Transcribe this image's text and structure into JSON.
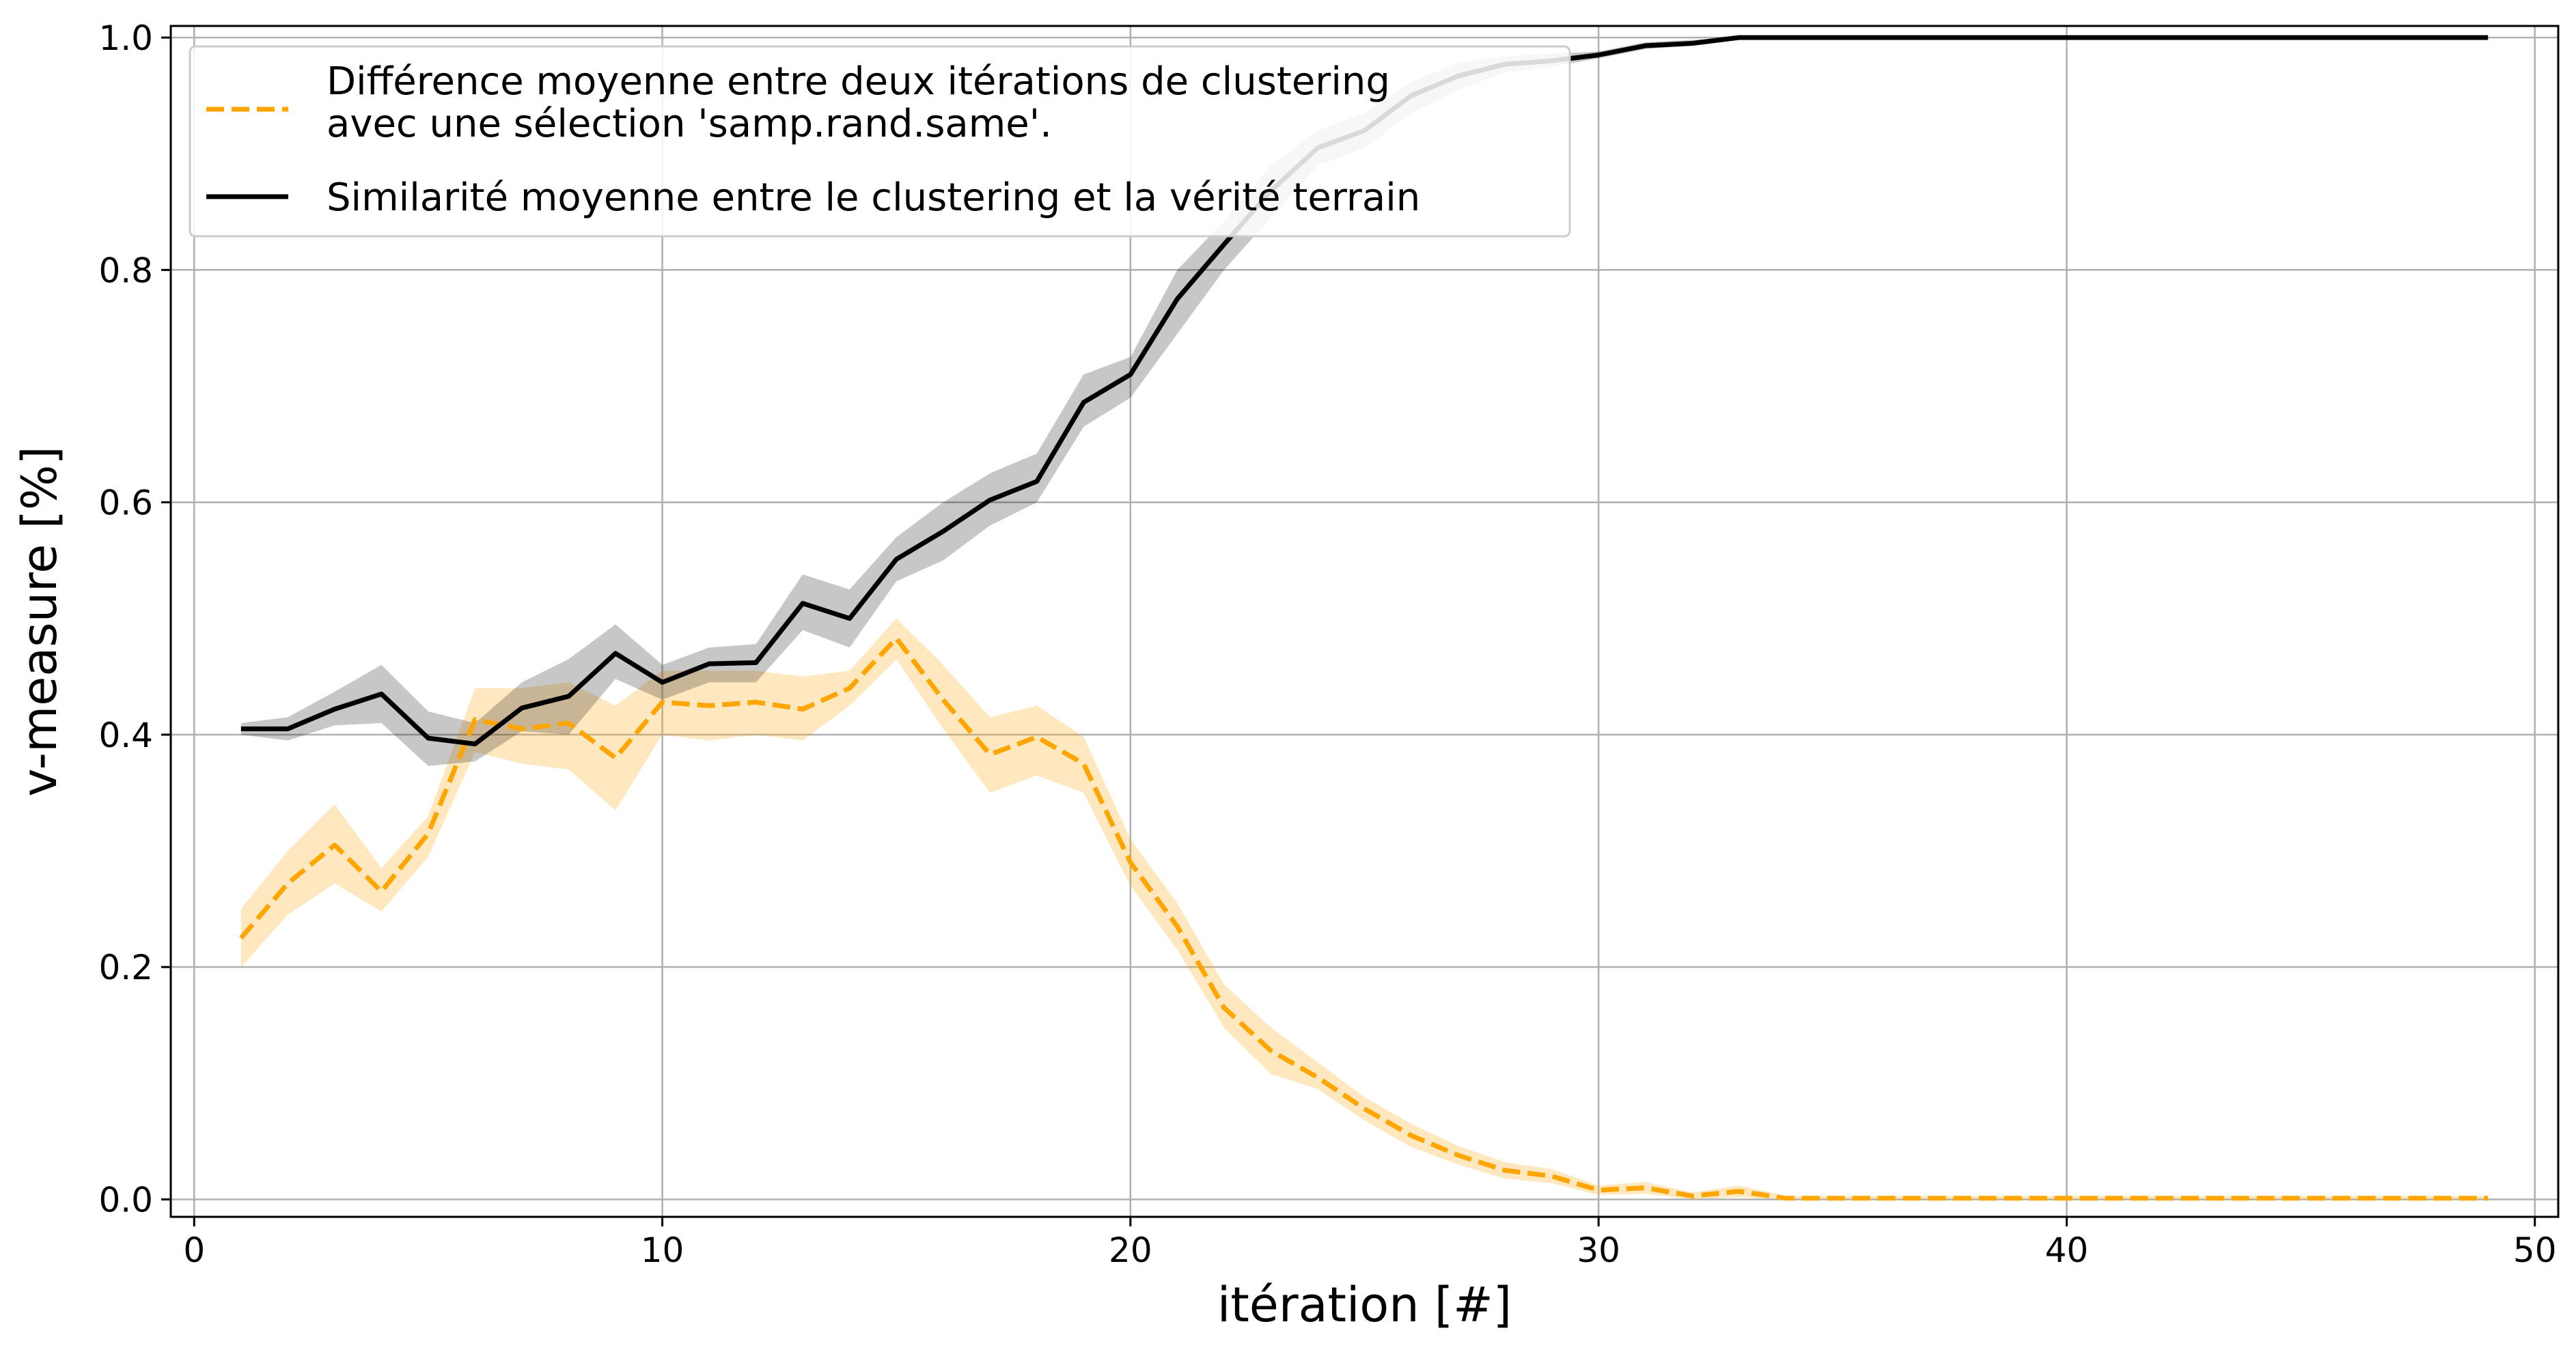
{
  "chart_data": {
    "type": "line",
    "xlabel": "itération [#]",
    "ylabel": "v-measure [%]",
    "xlim": [
      -0.5,
      50.5
    ],
    "ylim": [
      -0.015,
      1.01
    ],
    "xticks": [
      0,
      10,
      20,
      30,
      40,
      50
    ],
    "yticks": [
      0.0,
      0.2,
      0.4,
      0.6,
      0.8,
      1.0
    ],
    "xtick_labels": [
      "0",
      "10",
      "20",
      "30",
      "40",
      "50"
    ],
    "ytick_labels": [
      "0.0",
      "0.2",
      "0.4",
      "0.6",
      "0.8",
      "1.0"
    ],
    "grid": true,
    "legend_position": "top-left",
    "x": [
      1,
      2,
      3,
      4,
      5,
      6,
      7,
      8,
      9,
      10,
      11,
      12,
      13,
      14,
      15,
      16,
      17,
      18,
      19,
      20,
      21,
      22,
      23,
      24,
      25,
      26,
      27,
      28,
      29,
      30,
      31,
      32,
      33,
      34,
      35,
      36,
      37,
      38,
      39,
      40,
      41,
      42,
      43,
      44,
      45,
      46,
      47,
      48,
      49
    ],
    "series": [
      {
        "name": "Différence moyenne entre deux itérations de clustering avec une sélection 'samp.rand.same'.",
        "legend_lines": [
          "Différence moyenne entre deux itérations de clustering",
          "avec une sélection 'samp.rand.same'."
        ],
        "color": "#ffa500",
        "style": "dashed",
        "values": [
          0.225,
          0.272,
          0.305,
          0.265,
          0.315,
          0.413,
          0.405,
          0.41,
          0.38,
          0.428,
          0.425,
          0.428,
          0.422,
          0.44,
          0.483,
          0.43,
          0.383,
          0.398,
          0.375,
          0.29,
          0.235,
          0.165,
          0.128,
          0.105,
          0.078,
          0.055,
          0.038,
          0.025,
          0.02,
          0.008,
          0.01,
          0.003,
          0.007,
          0.001,
          0.001,
          0.001,
          0.001,
          0.001,
          0.001,
          0.001,
          0.001,
          0.001,
          0.001,
          0.001,
          0.001,
          0.001,
          0.001,
          0.001,
          0.001
        ],
        "lower": [
          0.2,
          0.245,
          0.272,
          0.248,
          0.295,
          0.385,
          0.375,
          0.37,
          0.335,
          0.4,
          0.395,
          0.4,
          0.395,
          0.425,
          0.465,
          0.405,
          0.35,
          0.365,
          0.35,
          0.27,
          0.215,
          0.148,
          0.108,
          0.095,
          0.068,
          0.045,
          0.03,
          0.018,
          0.014,
          0.004,
          0.005,
          0.0,
          0.002,
          0.0,
          0.0,
          0.0,
          0.0,
          0.0,
          0.0,
          0.0,
          0.0,
          0.0,
          0.0,
          0.0,
          0.0,
          0.0,
          0.0,
          0.0,
          0.0
        ],
        "upper": [
          0.25,
          0.3,
          0.34,
          0.285,
          0.33,
          0.44,
          0.44,
          0.445,
          0.425,
          0.455,
          0.455,
          0.455,
          0.45,
          0.455,
          0.5,
          0.46,
          0.415,
          0.425,
          0.398,
          0.31,
          0.255,
          0.185,
          0.148,
          0.118,
          0.088,
          0.065,
          0.046,
          0.032,
          0.026,
          0.012,
          0.015,
          0.006,
          0.012,
          0.003,
          0.003,
          0.003,
          0.003,
          0.003,
          0.003,
          0.003,
          0.003,
          0.003,
          0.003,
          0.003,
          0.003,
          0.003,
          0.003,
          0.003,
          0.003
        ]
      },
      {
        "name": "Similarité moyenne entre le clustering et la vérité terrain",
        "legend_lines": [
          "Similarité moyenne entre le clustering et la vérité terrain"
        ],
        "color": "#000000",
        "style": "solid",
        "values": [
          0.405,
          0.405,
          0.422,
          0.435,
          0.397,
          0.392,
          0.423,
          0.433,
          0.47,
          0.445,
          0.461,
          0.462,
          0.513,
          0.5,
          0.551,
          0.575,
          0.602,
          0.618,
          0.686,
          0.71,
          0.775,
          0.822,
          0.868,
          0.905,
          0.92,
          0.95,
          0.967,
          0.977,
          0.98,
          0.985,
          0.993,
          0.995,
          1.0,
          1.0,
          1.0,
          1.0,
          1.0,
          1.0,
          1.0,
          1.0,
          1.0,
          1.0,
          1.0,
          1.0,
          1.0,
          1.0,
          1.0,
          1.0,
          1.0
        ],
        "lower": [
          0.4,
          0.395,
          0.408,
          0.41,
          0.373,
          0.377,
          0.403,
          0.4,
          0.448,
          0.43,
          0.445,
          0.445,
          0.49,
          0.475,
          0.532,
          0.55,
          0.58,
          0.6,
          0.665,
          0.69,
          0.745,
          0.8,
          0.845,
          0.89,
          0.905,
          0.935,
          0.955,
          0.97,
          0.975,
          0.982,
          0.99,
          0.993,
          0.999,
          1.0,
          1.0,
          1.0,
          1.0,
          1.0,
          1.0,
          1.0,
          1.0,
          1.0,
          1.0,
          1.0,
          1.0,
          1.0,
          1.0,
          1.0,
          1.0
        ],
        "upper": [
          0.41,
          0.415,
          0.437,
          0.46,
          0.42,
          0.41,
          0.445,
          0.465,
          0.495,
          0.46,
          0.475,
          0.478,
          0.538,
          0.525,
          0.57,
          0.6,
          0.625,
          0.642,
          0.71,
          0.725,
          0.8,
          0.842,
          0.89,
          0.92,
          0.935,
          0.962,
          0.978,
          0.984,
          0.986,
          0.988,
          0.996,
          0.998,
          1.0,
          1.0,
          1.0,
          1.0,
          1.0,
          1.0,
          1.0,
          1.0,
          1.0,
          1.0,
          1.0,
          1.0,
          1.0,
          1.0,
          1.0,
          1.0,
          1.0
        ]
      }
    ]
  }
}
